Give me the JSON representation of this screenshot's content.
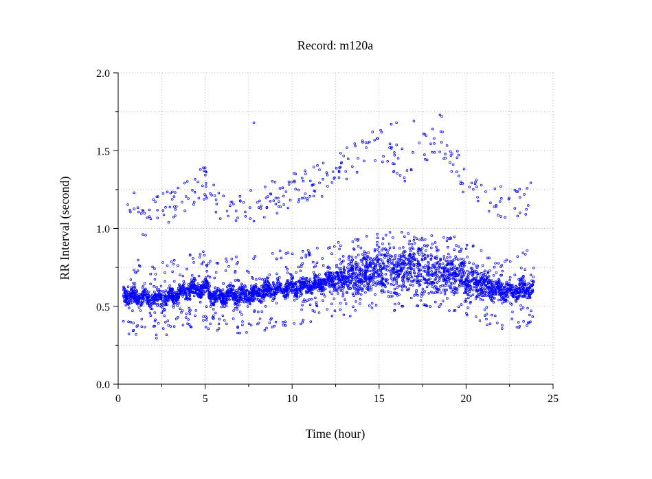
{
  "chart_data": {
    "type": "scatter",
    "title": "Record:  m120a",
    "xlabel": "Time (hour)",
    "ylabel": "RR Interval (second)",
    "xlim": [
      0,
      25
    ],
    "ylim": [
      0,
      2
    ],
    "x_ticks": [
      0,
      5,
      10,
      15,
      20,
      25
    ],
    "x_tick_labels": [
      "0",
      "5",
      "10",
      "15",
      "20",
      "25"
    ],
    "y_ticks": [
      0,
      0.5,
      1,
      1.5,
      2
    ],
    "y_tick_labels": [
      "0.0",
      "0.5",
      "1.0",
      "1.5",
      "2.0"
    ],
    "grid": true,
    "marker_color": "#0000ff",
    "series": [
      {
        "marker": "circle",
        "x_range": [
          0.3,
          23.9
        ],
        "baseline_trend": [
          {
            "x": 0.3,
            "y": 0.58
          },
          {
            "x": 1.0,
            "y": 0.56
          },
          {
            "x": 2.0,
            "y": 0.54
          },
          {
            "x": 3.0,
            "y": 0.56
          },
          {
            "x": 4.0,
            "y": 0.6
          },
          {
            "x": 5.0,
            "y": 0.62
          },
          {
            "x": 5.5,
            "y": 0.56
          },
          {
            "x": 7.0,
            "y": 0.57
          },
          {
            "x": 8.0,
            "y": 0.58
          },
          {
            "x": 9.0,
            "y": 0.61
          },
          {
            "x": 10.0,
            "y": 0.62
          },
          {
            "x": 11.0,
            "y": 0.63
          },
          {
            "x": 12.0,
            "y": 0.66
          },
          {
            "x": 13.0,
            "y": 0.68
          },
          {
            "x": 14.0,
            "y": 0.7
          },
          {
            "x": 15.0,
            "y": 0.74
          },
          {
            "x": 16.0,
            "y": 0.72
          },
          {
            "x": 17.0,
            "y": 0.76
          },
          {
            "x": 18.0,
            "y": 0.72
          },
          {
            "x": 19.0,
            "y": 0.72
          },
          {
            "x": 20.0,
            "y": 0.68
          },
          {
            "x": 21.0,
            "y": 0.64
          },
          {
            "x": 22.0,
            "y": 0.6
          },
          {
            "x": 23.0,
            "y": 0.6
          },
          {
            "x": 23.9,
            "y": 0.62
          }
        ],
        "band_halfwidth_trend": [
          {
            "x": 0.3,
            "y": 0.05
          },
          {
            "x": 12.0,
            "y": 0.05
          },
          {
            "x": 13.5,
            "y": 0.1
          },
          {
            "x": 15.5,
            "y": 0.13
          },
          {
            "x": 17.0,
            "y": 0.14
          },
          {
            "x": 18.5,
            "y": 0.13
          },
          {
            "x": 20.0,
            "y": 0.08
          },
          {
            "x": 23.9,
            "y": 0.05
          }
        ],
        "upper_cluster_trend": [
          {
            "x": 0.3,
            "y": 1.25
          },
          {
            "x": 1.5,
            "y": 1.05
          },
          {
            "x": 3.0,
            "y": 1.15
          },
          {
            "x": 4.8,
            "y": 1.3
          },
          {
            "x": 6.0,
            "y": 1.12
          },
          {
            "x": 8.0,
            "y": 1.15
          },
          {
            "x": 10.0,
            "y": 1.25
          },
          {
            "x": 12.0,
            "y": 1.32
          },
          {
            "x": 13.5,
            "y": 1.45
          },
          {
            "x": 15.0,
            "y": 1.55
          },
          {
            "x": 16.5,
            "y": 1.4
          },
          {
            "x": 18.5,
            "y": 1.6
          },
          {
            "x": 20.0,
            "y": 1.3
          },
          {
            "x": 21.5,
            "y": 1.15
          },
          {
            "x": 23.8,
            "y": 1.2
          }
        ],
        "outlier_points": [
          {
            "x": 7.8,
            "y": 1.68
          },
          {
            "x": 18.5,
            "y": 1.73
          },
          {
            "x": 18.6,
            "y": 1.72
          },
          {
            "x": 15.7,
            "y": 1.67
          },
          {
            "x": 16.0,
            "y": 1.68
          },
          {
            "x": 17.0,
            "y": 1.69
          },
          {
            "x": 4.9,
            "y": 1.39
          },
          {
            "x": 5.0,
            "y": 1.39
          },
          {
            "x": 10.2,
            "y": 1.35
          }
        ]
      }
    ]
  }
}
